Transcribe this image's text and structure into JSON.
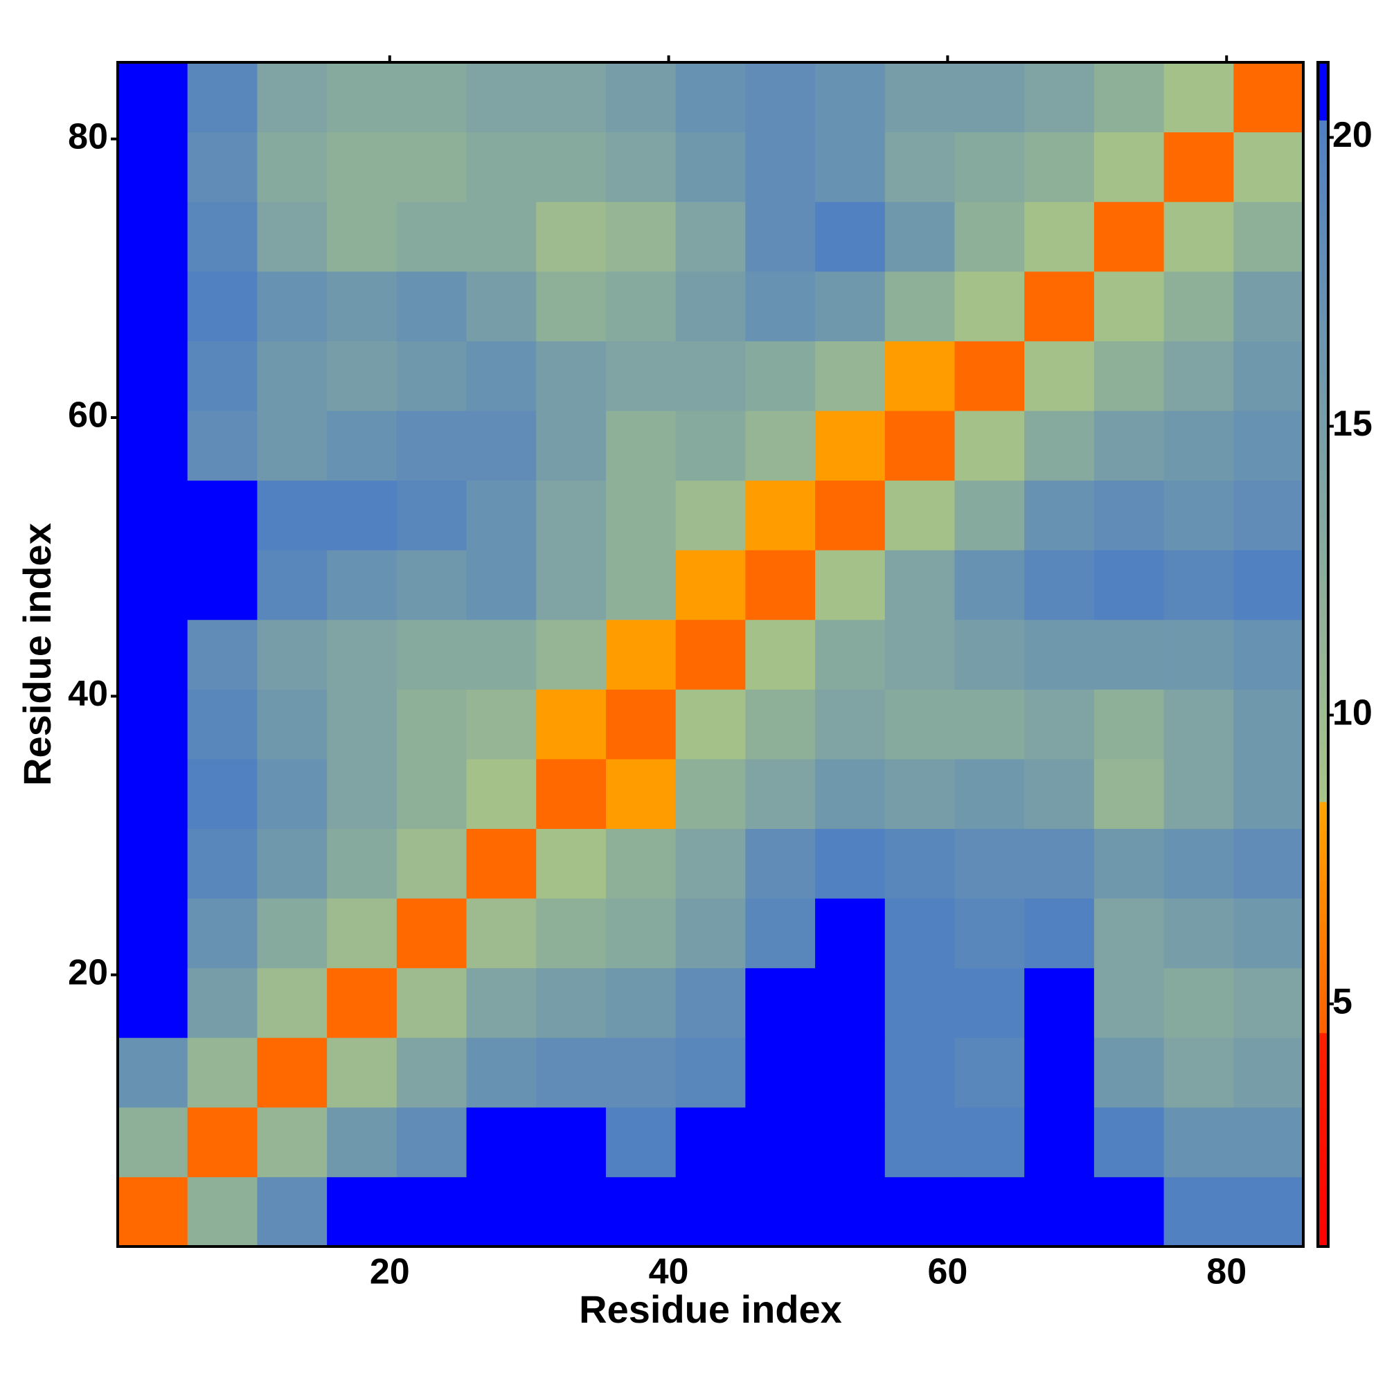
{
  "chart_data": {
    "type": "heatmap",
    "xlabel": "Residue index",
    "ylabel": "Residue index",
    "xbins": [
      0.5,
      5.5,
      10.5,
      15.5,
      20.5,
      25.5,
      30.5,
      35.5,
      40.5,
      45.5,
      50.5,
      55.5,
      60.5,
      65.5,
      70.5,
      75.5,
      80.5,
      85.5
    ],
    "ybins": [
      0.5,
      5.5,
      10.5,
      15.5,
      20.5,
      25.5,
      30.5,
      35.5,
      40.5,
      45.5,
      50.5,
      55.5,
      60.5,
      65.5,
      70.5,
      75.5,
      80.5,
      85.5
    ],
    "values": [
      [
        5,
        12,
        18,
        21,
        21,
        21,
        21,
        21,
        21,
        21,
        21,
        21,
        21,
        21,
        21,
        20,
        20
      ],
      [
        12,
        5,
        11,
        16,
        18,
        21,
        21,
        20,
        21,
        21,
        21,
        20,
        20,
        21,
        20,
        17,
        17
      ],
      [
        17,
        11,
        5,
        10,
        14,
        17,
        18,
        18,
        19,
        21,
        21,
        20,
        19,
        21,
        16,
        14,
        15
      ],
      [
        21,
        15,
        10,
        5,
        10,
        14,
        15,
        16,
        18,
        21,
        21,
        20,
        20,
        21,
        14,
        13,
        14
      ],
      [
        21,
        17,
        13,
        10,
        5,
        10,
        12,
        13,
        15,
        19,
        21,
        20,
        19,
        20,
        14,
        15,
        16
      ],
      [
        21,
        19,
        16,
        13,
        10,
        5,
        9,
        12,
        14,
        18,
        20,
        19,
        18,
        18,
        16,
        17,
        18
      ],
      [
        21,
        20,
        17,
        14,
        12,
        9,
        5,
        8,
        12,
        14,
        16,
        15,
        16,
        15,
        11,
        14,
        16
      ],
      [
        21,
        19,
        16,
        14,
        12,
        11,
        8,
        5,
        9,
        12,
        14,
        13,
        13,
        14,
        12,
        14,
        16
      ],
      [
        21,
        18,
        15,
        14,
        13,
        13,
        11,
        8,
        5,
        9,
        13,
        14,
        15,
        16,
        16,
        16,
        17
      ],
      [
        21,
        21,
        19,
        17,
        16,
        17,
        14,
        12,
        8,
        5,
        9,
        14,
        17,
        19,
        20,
        19,
        20
      ],
      [
        21,
        21,
        20,
        20,
        19,
        17,
        14,
        12,
        10,
        8,
        5,
        9,
        13,
        17,
        18,
        17,
        18
      ],
      [
        21,
        18,
        16,
        17,
        18,
        18,
        15,
        12,
        13,
        11,
        8,
        5,
        9,
        13,
        15,
        16,
        17
      ],
      [
        21,
        19,
        16,
        15,
        16,
        17,
        15,
        14,
        14,
        13,
        11,
        8,
        5,
        9,
        12,
        14,
        16
      ],
      [
        21,
        20,
        17,
        16,
        17,
        15,
        12,
        13,
        15,
        17,
        16,
        12,
        9,
        5,
        9,
        12,
        15
      ],
      [
        21,
        19,
        14,
        12,
        13,
        13,
        10,
        11,
        14,
        18,
        20,
        16,
        12,
        9,
        5,
        9,
        12
      ],
      [
        21,
        18,
        13,
        12,
        12,
        13,
        13,
        14,
        16,
        18,
        17,
        14,
        13,
        12,
        9,
        5,
        9
      ],
      [
        21,
        19,
        14,
        13,
        13,
        14,
        14,
        15,
        17,
        18,
        17,
        15,
        15,
        14,
        12,
        9,
        5
      ]
    ],
    "xlim": [
      0.5,
      85.5
    ],
    "ylim": [
      0.5,
      85.5
    ],
    "xticks": [
      20,
      40,
      60,
      80
    ],
    "yticks": [
      20,
      40,
      60,
      80
    ],
    "colorbar": {
      "lim": [
        0.8,
        21.3
      ],
      "ticks": [
        5,
        10,
        15,
        20
      ]
    },
    "colormap": [
      {
        "value": 0.8,
        "color": "#ff0000"
      },
      {
        "value": 4.5,
        "color": "#ff2000"
      },
      {
        "value": 4.5,
        "color": "#ff6000"
      },
      {
        "value": 8.5,
        "color": "#ffa500"
      },
      {
        "value": 8.5,
        "color": "#a8c488"
      },
      {
        "value": 20.3,
        "color": "#4f7fc2"
      },
      {
        "value": 20.3,
        "color": "#0000ff"
      },
      {
        "value": 21.3,
        "color": "#0000ff"
      }
    ]
  }
}
